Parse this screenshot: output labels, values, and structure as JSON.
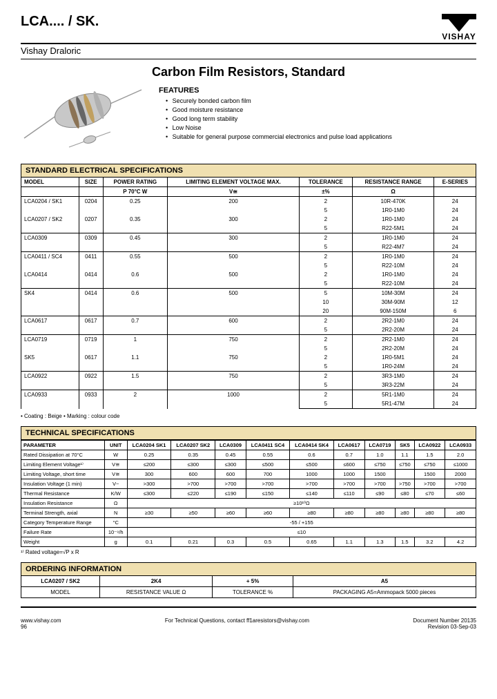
{
  "header": {
    "product_code": "LCA.... / SK.",
    "brand": "VISHAY",
    "subbrand": "Vishay Draloric"
  },
  "title": "Carbon Film Resistors, Standard",
  "features": {
    "heading": "FEATURES",
    "items": [
      "Securely bonded carbon film",
      "Good moisture resistance",
      "Good long term stability",
      "Low Noise",
      "Suitable for general purpose commercial electronics and pulse load applications"
    ]
  },
  "sections": {
    "spec_header": "STANDARD ELECTRICAL SPECIFICATIONS",
    "tech_header": "TECHNICAL SPECIFICATIONS",
    "order_header": "ORDERING INFORMATION"
  },
  "spec_columns": [
    "MODEL",
    "SIZE",
    "POWER RATING",
    "LIMITING ELEMENT VOLTAGE MAX.",
    "TOLERANCE",
    "RESISTANCE RANGE",
    "E-SERIES"
  ],
  "spec_subheaders": {
    "power": "P 70°C W",
    "voltage": "V≅",
    "tolerance": "±%",
    "resistance": "Ω"
  },
  "spec_rows": [
    {
      "sep": true,
      "model": "LCA0204 / SK1",
      "size": "0204",
      "power": "0.25",
      "voltage": "200",
      "tol": [
        "2",
        "5"
      ],
      "res": [
        "10R-470K",
        "1R0-1M0"
      ],
      "eser": [
        "24",
        "24"
      ]
    },
    {
      "sep": false,
      "model": "LCA0207 / SK2",
      "size": "0207",
      "power": "0.35",
      "voltage": "300",
      "tol": [
        "2",
        "5"
      ],
      "res": [
        "1R0-1M0",
        "R22-5M1"
      ],
      "eser": [
        "24",
        "24"
      ]
    },
    {
      "sep": true,
      "model": "LCA0309",
      "size": "0309",
      "power": "0.45",
      "voltage": "300",
      "tol": [
        "2",
        "5"
      ],
      "res": [
        "1R0-1M0",
        "R22-4M7"
      ],
      "eser": [
        "24",
        "24"
      ]
    },
    {
      "sep": true,
      "model": "LCA0411 / SC4",
      "size": "0411",
      "power": "0.55",
      "voltage": "500",
      "tol": [
        "2",
        "5"
      ],
      "res": [
        "1R0-1M0",
        "R22-10M"
      ],
      "eser": [
        "24",
        "24"
      ]
    },
    {
      "sep": false,
      "model": "LCA0414",
      "size": "0414",
      "power": "0.6",
      "voltage": "500",
      "tol": [
        "2",
        "5"
      ],
      "res": [
        "1R0-1M0",
        "R22-10M"
      ],
      "eser": [
        "24",
        "24"
      ]
    },
    {
      "sep": true,
      "model": "SK4",
      "size": "0414",
      "power": "0.6",
      "voltage": "500",
      "tol": [
        "5",
        "10",
        "20"
      ],
      "res": [
        "10M-30M",
        "30M-90M",
        "90M-150M"
      ],
      "eser": [
        "24",
        "12",
        "6"
      ]
    },
    {
      "sep": true,
      "model": "LCA0617",
      "size": "0617",
      "power": "0.7",
      "voltage": "600",
      "tol": [
        "2",
        "5"
      ],
      "res": [
        "2R2-1M0",
        "2R2-20M"
      ],
      "eser": [
        "24",
        "24"
      ]
    },
    {
      "sep": true,
      "model": "LCA0719",
      "size": "0719",
      "power": "1",
      "voltage": "750",
      "tol": [
        "2",
        "5"
      ],
      "res": [
        "2R2-1M0",
        "2R2-20M"
      ],
      "eser": [
        "24",
        "24"
      ]
    },
    {
      "sep": false,
      "model": "SK5",
      "size": "0617",
      "power": "1.1",
      "voltage": "750",
      "tol": [
        "2",
        "5"
      ],
      "res": [
        "1R0-5M1",
        "1R0-24M"
      ],
      "eser": [
        "24",
        "24"
      ]
    },
    {
      "sep": true,
      "model": "LCA0922",
      "size": "0922",
      "power": "1.5",
      "voltage": "750",
      "tol": [
        "2",
        "5"
      ],
      "res": [
        "3R3-1M0",
        "3R3-22M"
      ],
      "eser": [
        "24",
        "24"
      ]
    },
    {
      "sep": true,
      "model": "LCA0933",
      "size": "0933",
      "power": "2",
      "voltage": "1000",
      "tol": [
        "2",
        "5"
      ],
      "res": [
        "5R1-1M0",
        "5R1-47M"
      ],
      "eser": [
        "24",
        "24"
      ]
    }
  ],
  "spec_note": "• Coating : Beige    • Marking : colour code",
  "tech_columns": [
    "PARAMETER",
    "UNIT",
    "LCA0204 SK1",
    "LCA0207 SK2",
    "LCA0309",
    "LCA0411 SC4",
    "LCA0414 SK4",
    "LCA0617",
    "LCA0719",
    "SK5",
    "LCA0922",
    "LCA0933"
  ],
  "tech_rows": [
    [
      "Rated Dissipation at 70°C",
      "W",
      "0.25",
      "0.35",
      "0.45",
      "0.55",
      "0.6",
      "0.7",
      "1.0",
      "1.1",
      "1.5",
      "2.0"
    ],
    [
      "Limiting Element Voltage¹⁾",
      "V≅",
      "≤200",
      "≤300",
      "≤300",
      "≤500",
      "≤500",
      "≤600",
      "≤750",
      "≤750",
      "≤750",
      "≤1000"
    ],
    [
      "Limiting Voltage, short time",
      "V≅",
      "300",
      "600",
      "600",
      "700",
      "1000",
      "1000",
      "1500",
      "",
      "1500",
      "2000"
    ],
    [
      "Insulation Voltage (1 min)",
      "V~",
      ">300",
      ">700",
      ">700",
      ">700",
      ">700",
      ">700",
      ">700",
      ">750",
      ">700",
      ">700"
    ],
    [
      "Thermal Resistance",
      "K/W",
      "≤300",
      "≤220",
      "≤190",
      "≤150",
      "≤140",
      "≤110",
      "≤90",
      "≤80",
      "≤70",
      "≤60"
    ]
  ],
  "tech_span_rows": [
    {
      "label": "Insulation Resistance",
      "unit": "Ω",
      "value": "≥10¹⁰Ω"
    },
    {
      "label": "Terminal Strength, axial",
      "unit": "N",
      "cells": [
        "≥30",
        "≥50",
        "≥60",
        "≥60",
        "≥80",
        "≥80",
        "≥80",
        "≥80",
        "≥80",
        "≥80"
      ]
    },
    {
      "label": "Category Temperature Range",
      "unit": "°C",
      "value": "-55 / +155"
    },
    {
      "label": "Failure Rate",
      "unit": "10⁻⁹/h",
      "value": "≤10"
    },
    {
      "label": "Weight",
      "unit": "g",
      "cells": [
        "0.1",
        "0.21",
        "0.3",
        "0.5",
        "0.65",
        "1.1",
        "1.3",
        "1.5",
        "3.2",
        "4.2"
      ]
    }
  ],
  "tech_note": "¹⁾ Rated voltage=√P x R",
  "ordering": {
    "headers": [
      "LCA0207 / SK2",
      "2K4",
      "+ 5%",
      "A5"
    ],
    "labels": [
      "MODEL",
      "RESISTANCE VALUE Ω",
      "TOLERANCE %",
      "PACKAGING A5=Ammopack 5000 pieces"
    ]
  },
  "footer": {
    "left_url": "www.vishay.com",
    "left_page": "96",
    "center": "For Technical Questions, contact ff1aresistors@vishay.com",
    "right_doc": "Document Number 20135",
    "right_rev": "Revision 03-Sep-03"
  },
  "colors": {
    "section_bg": "#f0e0b0",
    "border": "#000000",
    "text": "#000000"
  }
}
